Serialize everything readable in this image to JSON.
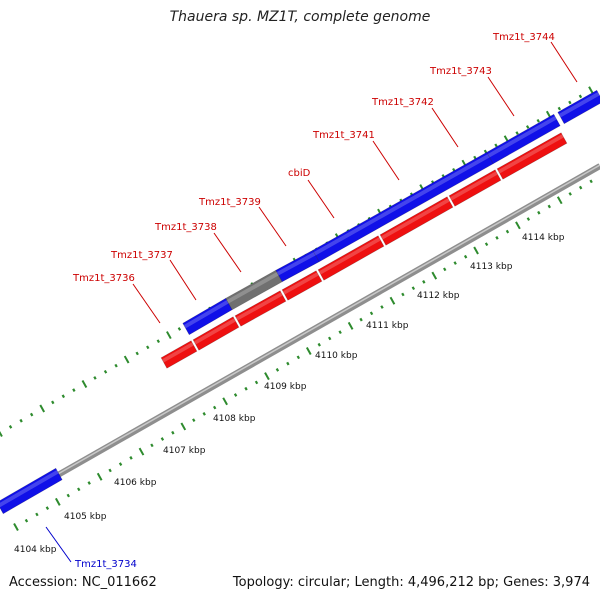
{
  "title": "Thauera sp. MZ1T, complete genome",
  "footer": {
    "accession": "Accession: NC_011662",
    "summary": "Topology: circular; Length: 4,496,212 bp; Genes: 3,974"
  },
  "colors": {
    "forward_gene": "#1010e8",
    "reverse_gene": "#ee1010",
    "other_gene": "#707070",
    "backbone": "#8e8e8e",
    "ticks": "#2e8b2e",
    "label_forward": "#cc0000",
    "label_reverse": "#0000cc"
  },
  "scale_ticks": [
    "4104 kbp",
    "4105 kbp",
    "4106 kbp",
    "4107 kbp",
    "4108 kbp",
    "4109 kbp",
    "4110 kbp",
    "4111 kbp",
    "4112 kbp",
    "4113 kbp",
    "4114 kbp"
  ],
  "gene_labels": [
    "Tmz1t_3734",
    "Tmz1t_3736",
    "Tmz1t_3737",
    "Tmz1t_3738",
    "Tmz1t_3739",
    "cbiD",
    "Tmz1t_3741",
    "Tmz1t_3742",
    "Tmz1t_3743",
    "Tmz1t_3744"
  ]
}
